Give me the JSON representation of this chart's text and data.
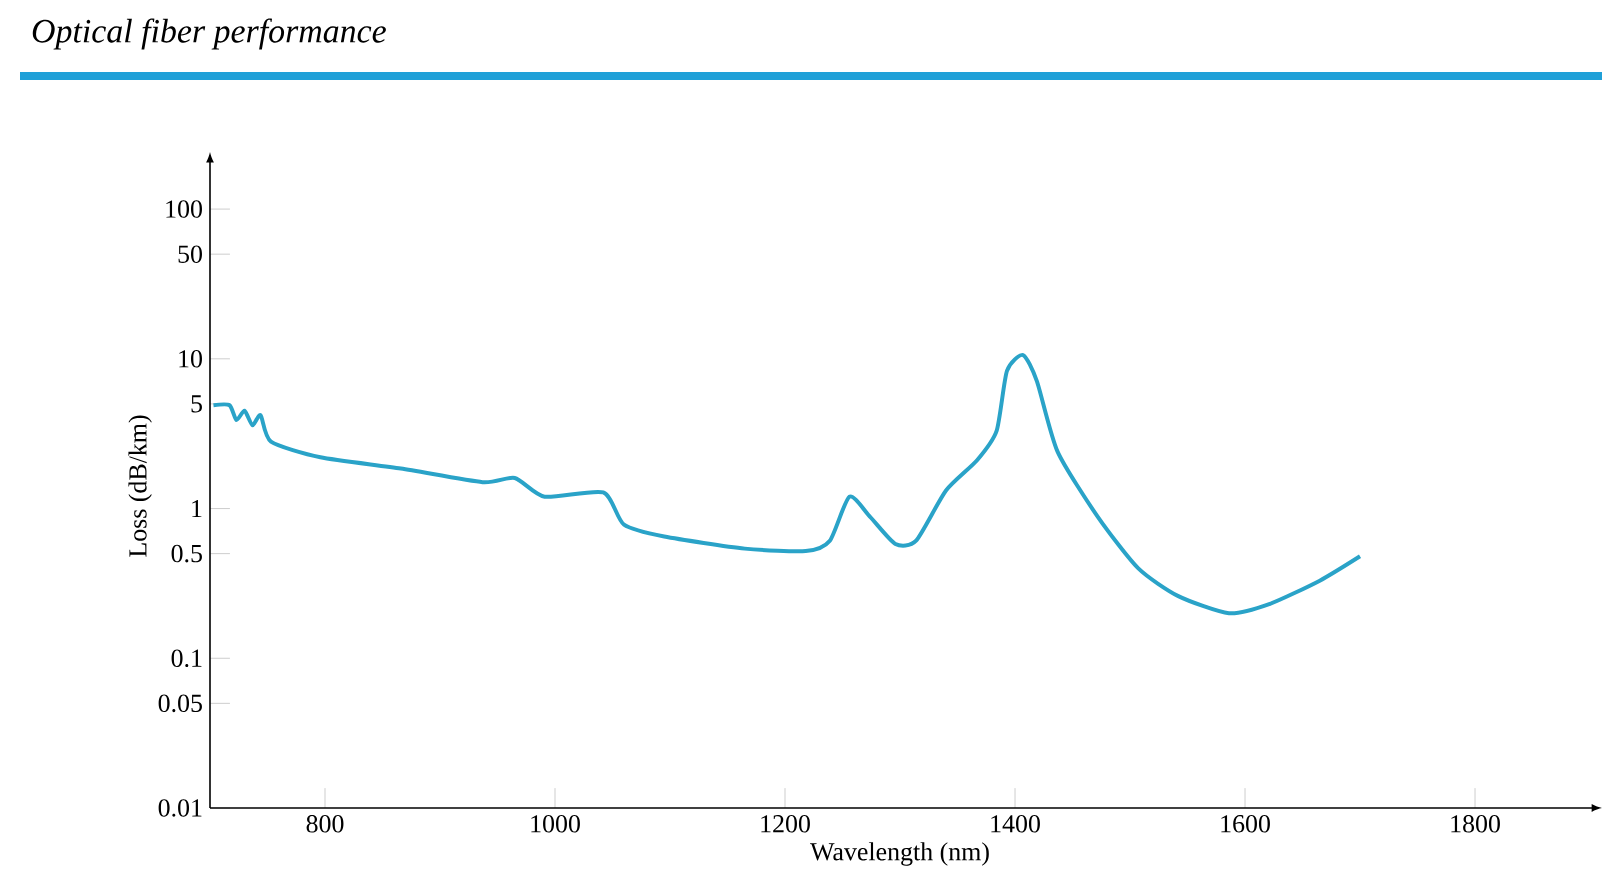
{
  "chart_data": {
    "type": "line",
    "title": "Optical fiber performance",
    "xlabel": "Wavelength (nm)",
    "ylabel": "Loss (dB/km)",
    "log": "y",
    "xlim": [
      700,
      1900
    ],
    "xticks": [
      800,
      1000,
      1200,
      1400,
      1600,
      1800
    ],
    "ylim": [
      0.01,
      200
    ],
    "yticks": [
      0.01,
      0.05,
      0.1,
      0.5,
      1,
      5,
      10,
      50,
      100
    ],
    "series": [
      {
        "color": "#2aa3c8",
        "x": [
          703,
          717,
          723,
          730,
          737,
          744,
          753,
          796,
          866,
          937,
          965,
          991,
          1042,
          1060,
          1095,
          1165,
          1218,
          1239,
          1256,
          1274,
          1296,
          1314,
          1340,
          1367,
          1384,
          1393,
          1407,
          1419,
          1437,
          1472,
          1507,
          1542,
          1586,
          1621,
          1665,
          1700
        ],
        "values": [
          4.9,
          4.9,
          3.9,
          4.5,
          3.6,
          4.2,
          2.8,
          2.2,
          1.85,
          1.5,
          1.6,
          1.2,
          1.28,
          0.78,
          0.65,
          0.54,
          0.52,
          0.61,
          1.2,
          0.88,
          0.58,
          0.61,
          1.32,
          2.1,
          3.3,
          8.3,
          10.6,
          7.1,
          2.4,
          0.88,
          0.4,
          0.26,
          0.2,
          0.23,
          0.33,
          0.48
        ]
      }
    ]
  }
}
